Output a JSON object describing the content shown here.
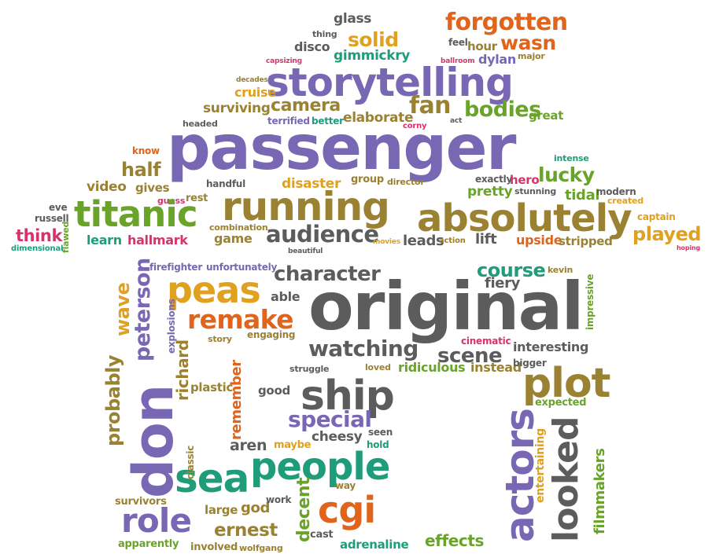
{
  "palette": {
    "purple": "#7868b4",
    "orange": "#e0641c",
    "olive": "#9a8232",
    "green": "#6aa32a",
    "teal": "#1f9c7a",
    "pink": "#d6336c",
    "gold": "#e0a020",
    "gray": "#5c5c5c"
  },
  "words": [
    {
      "text": "glass",
      "color": "gray"
    },
    {
      "text": "forgotten",
      "color": "orange"
    },
    {
      "text": "solid",
      "color": "gold"
    },
    {
      "text": "wasn",
      "color": "orange"
    },
    {
      "text": "thing",
      "color": "gray"
    },
    {
      "text": "disco",
      "color": "gray"
    },
    {
      "text": "gimmickry",
      "color": "teal"
    },
    {
      "text": "feel",
      "color": "gray"
    },
    {
      "text": "hour",
      "color": "olive"
    },
    {
      "text": "dylan",
      "color": "purple"
    },
    {
      "text": "major",
      "color": "olive"
    },
    {
      "text": "capsizing",
      "color": "pink"
    },
    {
      "text": "ballroom",
      "color": "pink"
    },
    {
      "text": "storytelling",
      "color": "purple"
    },
    {
      "text": "decades",
      "color": "olive"
    },
    {
      "text": "cruise",
      "color": "gold"
    },
    {
      "text": "camera",
      "color": "olive"
    },
    {
      "text": "fan",
      "color": "olive"
    },
    {
      "text": "bodies",
      "color": "green"
    },
    {
      "text": "surviving",
      "color": "olive"
    },
    {
      "text": "great",
      "color": "green"
    },
    {
      "text": "terrified",
      "color": "purple"
    },
    {
      "text": "better",
      "color": "teal"
    },
    {
      "text": "elaborate",
      "color": "olive"
    },
    {
      "text": "headed",
      "color": "gray"
    },
    {
      "text": "corny",
      "color": "pink"
    },
    {
      "text": "act",
      "color": "gray"
    },
    {
      "text": "passenger",
      "color": "purple"
    },
    {
      "text": "know",
      "color": "orange"
    },
    {
      "text": "half",
      "color": "olive"
    },
    {
      "text": "intense",
      "color": "teal"
    },
    {
      "text": "lucky",
      "color": "green"
    },
    {
      "text": "video",
      "color": "olive"
    },
    {
      "text": "gives",
      "color": "olive"
    },
    {
      "text": "handful",
      "color": "gray"
    },
    {
      "text": "disaster",
      "color": "gold"
    },
    {
      "text": "group",
      "color": "olive"
    },
    {
      "text": "director",
      "color": "olive"
    },
    {
      "text": "exactly",
      "color": "gray"
    },
    {
      "text": "hero",
      "color": "pink"
    },
    {
      "text": "pretty",
      "color": "green"
    },
    {
      "text": "stunning",
      "color": "gray"
    },
    {
      "text": "tidal",
      "color": "green"
    },
    {
      "text": "modern",
      "color": "gray"
    },
    {
      "text": "eve",
      "color": "gray"
    },
    {
      "text": "russell",
      "color": "gray"
    },
    {
      "text": "guess",
      "color": "pink"
    },
    {
      "text": "rest",
      "color": "olive"
    },
    {
      "text": "titanic",
      "color": "green"
    },
    {
      "text": "running",
      "color": "olive"
    },
    {
      "text": "absolutely",
      "color": "olive"
    },
    {
      "text": "created",
      "color": "gold"
    },
    {
      "text": "captain",
      "color": "gold"
    },
    {
      "text": "think",
      "color": "pink"
    },
    {
      "text": "flawed",
      "color": "green"
    },
    {
      "text": "dimensional",
      "color": "teal"
    },
    {
      "text": "learn",
      "color": "teal"
    },
    {
      "text": "hallmark",
      "color": "pink"
    },
    {
      "text": "combination",
      "color": "olive"
    },
    {
      "text": "game",
      "color": "olive"
    },
    {
      "text": "audience",
      "color": "gray"
    },
    {
      "text": "movies",
      "color": "gold"
    },
    {
      "text": "leads",
      "color": "gray"
    },
    {
      "text": "action",
      "color": "olive"
    },
    {
      "text": "lift",
      "color": "gray"
    },
    {
      "text": "upside",
      "color": "orange"
    },
    {
      "text": "stripped",
      "color": "olive"
    },
    {
      "text": "played",
      "color": "gold"
    },
    {
      "text": "hoping",
      "color": "pink"
    },
    {
      "text": "beautiful",
      "color": "gray"
    },
    {
      "text": "firefighter",
      "color": "purple"
    },
    {
      "text": "unfortunately",
      "color": "purple"
    },
    {
      "text": "character",
      "color": "gray"
    },
    {
      "text": "course",
      "color": "teal"
    },
    {
      "text": "kevin",
      "color": "olive"
    },
    {
      "text": "peas",
      "color": "gold"
    },
    {
      "text": "able",
      "color": "gray"
    },
    {
      "text": "original",
      "color": "gray"
    },
    {
      "text": "fiery",
      "color": "gray"
    },
    {
      "text": "remake",
      "color": "orange"
    },
    {
      "text": "peterson",
      "color": "purple"
    },
    {
      "text": "wave",
      "color": "gold"
    },
    {
      "text": "explosions",
      "color": "purple"
    },
    {
      "text": "engaging",
      "color": "olive"
    },
    {
      "text": "story",
      "color": "olive"
    },
    {
      "text": "watching",
      "color": "gray"
    },
    {
      "text": "scene",
      "color": "gray"
    },
    {
      "text": "cinematic",
      "color": "pink"
    },
    {
      "text": "interesting",
      "color": "gray"
    },
    {
      "text": "impressive",
      "color": "green"
    },
    {
      "text": "probably",
      "color": "olive"
    },
    {
      "text": "richard",
      "color": "olive"
    },
    {
      "text": "struggle",
      "color": "gray"
    },
    {
      "text": "loved",
      "color": "olive"
    },
    {
      "text": "ridiculous",
      "color": "green"
    },
    {
      "text": "instead",
      "color": "olive"
    },
    {
      "text": "bigger",
      "color": "gray"
    },
    {
      "text": "plot",
      "color": "olive"
    },
    {
      "text": "don",
      "color": "purple"
    },
    {
      "text": "plastic",
      "color": "olive"
    },
    {
      "text": "remember",
      "color": "orange"
    },
    {
      "text": "good",
      "color": "gray"
    },
    {
      "text": "ship",
      "color": "gray"
    },
    {
      "text": "expected",
      "color": "green"
    },
    {
      "text": "special",
      "color": "purple"
    },
    {
      "text": "aren",
      "color": "gray"
    },
    {
      "text": "maybe",
      "color": "gold"
    },
    {
      "text": "cheesy",
      "color": "gray"
    },
    {
      "text": "seen",
      "color": "gray"
    },
    {
      "text": "hold",
      "color": "teal"
    },
    {
      "text": "actors",
      "color": "purple"
    },
    {
      "text": "looked",
      "color": "gray"
    },
    {
      "text": "filmmakers",
      "color": "green"
    },
    {
      "text": "entertaining",
      "color": "gold"
    },
    {
      "text": "sea",
      "color": "teal"
    },
    {
      "text": "people",
      "color": "teal"
    },
    {
      "text": "decent",
      "color": "green"
    },
    {
      "text": "role",
      "color": "purple"
    },
    {
      "text": "large",
      "color": "olive"
    },
    {
      "text": "god",
      "color": "olive"
    },
    {
      "text": "cgi",
      "color": "orange"
    },
    {
      "text": "ernest",
      "color": "olive"
    },
    {
      "text": "cast",
      "color": "gray"
    },
    {
      "text": "effects",
      "color": "green"
    },
    {
      "text": "adrenaline",
      "color": "teal"
    },
    {
      "text": "involved",
      "color": "olive"
    },
    {
      "text": "wolfgang",
      "color": "olive"
    },
    {
      "text": "apparently",
      "color": "green"
    },
    {
      "text": "survivors",
      "color": "olive"
    },
    {
      "text": "work",
      "color": "gray"
    },
    {
      "text": "way",
      "color": "olive"
    },
    {
      "text": "classic",
      "color": "olive"
    }
  ]
}
